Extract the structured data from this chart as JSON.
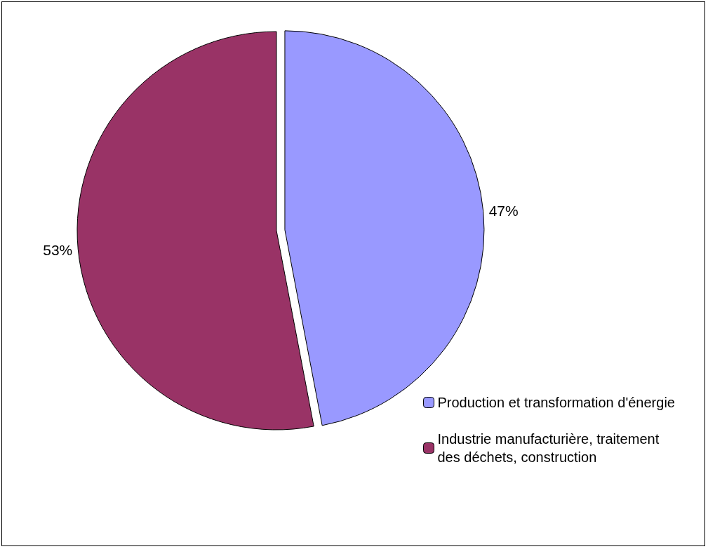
{
  "chart_data": {
    "type": "pie",
    "categories": [
      "Production et transformation d'énergie",
      "Industrie manufacturière, traitement des déchets, construction"
    ],
    "values": [
      47,
      53
    ],
    "colors": [
      "#9999ff",
      "#993366"
    ],
    "value_labels": [
      "47%",
      "53%"
    ],
    "legend": "bottom right"
  }
}
